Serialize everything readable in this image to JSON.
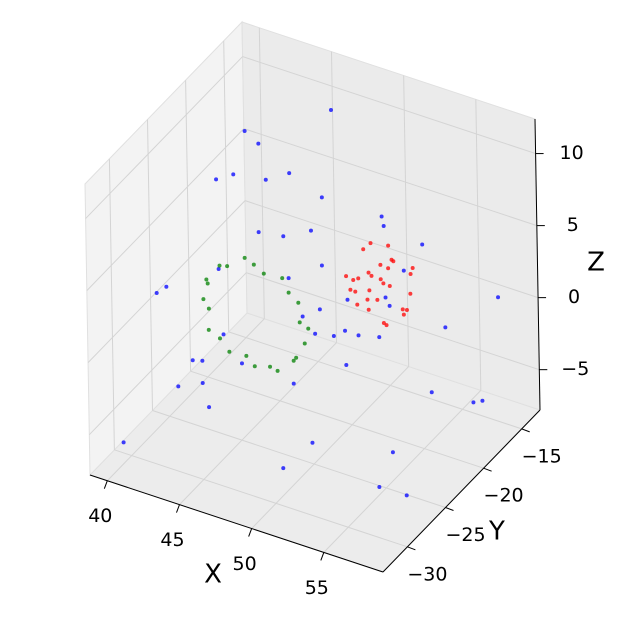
{
  "chart_data": {
    "type": "scatter3d",
    "xlabel": "X",
    "ylabel": "Y",
    "zlabel": "Z",
    "xlim": [
      38.8,
      59.1
    ],
    "ylim": [
      -33.2,
      -12.6
    ],
    "zlim": [
      -7.8,
      12.4
    ],
    "xticks": [
      40,
      45,
      50,
      55
    ],
    "yticks": [
      {
        "value": -30,
        "label": "−30"
      },
      {
        "value": -25,
        "label": "−25"
      },
      {
        "value": -20,
        "label": "−20"
      },
      {
        "value": -15,
        "label": "−15"
      }
    ],
    "zticks": [
      {
        "value": -5,
        "label": "−5"
      },
      0,
      5,
      10
    ],
    "grid": true,
    "series": [
      {
        "color": "#0000ff",
        "x": [
          40.1,
          41.5,
          43.2,
          44.8,
          46.3,
          47.9,
          49.2,
          50.6,
          52.1,
          53.7,
          55.2,
          56.8,
          57.5,
          39.6,
          42.4,
          45.7,
          48.5,
          51.3,
          54.4,
          57.1,
          40.8,
          43.9,
          46.9,
          49.8,
          52.8,
          55.9,
          41.2,
          44.1,
          47.3,
          50.2,
          53.4,
          56.3,
          42.7,
          45.2,
          48.1,
          51.7,
          54.8,
          39.9,
          43.5,
          46.5,
          49.5,
          52.5,
          55.5,
          58.2,
          41.9,
          44.6,
          47.6,
          50.9,
          53.9,
          56.9
        ],
        "y": [
          -31.2,
          -17.5,
          -24.3,
          -28.8,
          -15.2,
          -20.7,
          -26.4,
          -30.1,
          -16.9,
          -22.6,
          -19.3,
          -27.5,
          -14.8,
          -23.1,
          -29.6,
          -18.2,
          -25.7,
          -21.4,
          -31.7,
          -16.3,
          -27.9,
          -20.2,
          -14.6,
          -24.8,
          -29.1,
          -18.7,
          -22.9,
          -26.1,
          -31.4,
          -15.8,
          -21.8,
          -28.3,
          -17.1,
          -25.2,
          -19.9,
          -30.6,
          -23.7,
          -16.1,
          -28.4,
          -21.1,
          -15.4,
          -26.8,
          -30.9,
          -19.5,
          -24.2,
          -14.9,
          -27.2,
          -22.3,
          -17.8,
          -25.9
        ],
        "z": [
          -6.2,
          8.4,
          3.1,
          -3.5,
          10.2,
          -1.8,
          5.6,
          -5.1,
          1.9,
          9.3,
          -4.2,
          6.8,
          0.7,
          -6.9,
          4.5,
          -2.7,
          7.9,
          -0.4,
          11.1,
          -5.8,
          2.6,
          9.8,
          -3.1,
          -6.5,
          6.1,
          0.2,
          -4.7,
          10.6,
          3.8,
          -1.2,
          8.1,
          -5.5,
          5.2,
          -2.3,
          7.3,
          1.4,
          -6.1,
          4.1,
          -0.9,
          9.1,
          -4.4,
          2.9,
          6.5,
          -3.8,
          -5.3,
          1.1,
          8.7,
          -2.1,
          4.8,
          -7.2
        ]
      },
      {
        "color": "#008000",
        "x": [
          48.4,
          48.3,
          47.9,
          47.4,
          46.7,
          45.8,
          44.9,
          44.0,
          43.2,
          42.4,
          41.9,
          41.5,
          41.4,
          41.5,
          41.9,
          42.4,
          43.2,
          44.0,
          44.9,
          45.8,
          46.7,
          47.4,
          47.9,
          48.3
        ],
        "y": [
          -22.5,
          -23.4,
          -22.8,
          -23.1,
          -22.6,
          -23.3,
          -22.9,
          -22.4,
          -23.2,
          -22.7,
          -23.5,
          -22.6,
          -23.0,
          -22.5,
          -23.3,
          -22.8,
          -23.1,
          -22.4,
          -23.0,
          -22.7,
          -23.4,
          -22.6,
          -23.2,
          -22.8
        ],
        "z": [
          -0.3,
          0.6,
          1.5,
          2.2,
          2.7,
          3.1,
          3.2,
          3.1,
          2.7,
          2.2,
          1.5,
          0.6,
          -0.3,
          -1.2,
          -2.1,
          -2.8,
          -3.3,
          -3.7,
          -3.8,
          -3.7,
          -3.3,
          -2.8,
          -2.1,
          -1.2
        ]
      },
      {
        "color": "#ff0000",
        "x": [
          50.1,
          51.8,
          52.9,
          49.8,
          51.2,
          52.4,
          50.6,
          53.1,
          51.5,
          49.9,
          52.2,
          50.8,
          51.9,
          53.3,
          50.3,
          51.1,
          52.7,
          49.6,
          51.6,
          52.5,
          50.4,
          51.3,
          53.0,
          50.0,
          52.0,
          51.7,
          50.7,
          52.8,
          49.7,
          51.4
        ],
        "y": [
          -19.5,
          -17.9,
          -18.6,
          -20.1,
          -17.2,
          -19.8,
          -18.3,
          -17.6,
          -20.4,
          -18.9,
          -19.1,
          -17.5,
          -20.0,
          -18.8,
          -17.8,
          -19.6,
          -18.1,
          -19.2,
          -17.3,
          -20.3,
          -18.5,
          -19.9,
          -17.7,
          -18.2,
          -19.4,
          -18.0,
          -20.2,
          -17.4,
          -19.0,
          -18.6
        ],
        "z": [
          1.2,
          3.1,
          0.4,
          2.5,
          3.5,
          -0.2,
          1.8,
          2.8,
          0.9,
          -0.1,
          3.3,
          2.2,
          1.5,
          0.6,
          3.7,
          2.9,
          -0.3,
          1.0,
          2.6,
          3.0,
          0.2,
          1.9,
          2.4,
          3.4,
          -0.4,
          1.3,
          2.7,
          0.8,
          1.6,
          2.0
        ]
      }
    ]
  }
}
